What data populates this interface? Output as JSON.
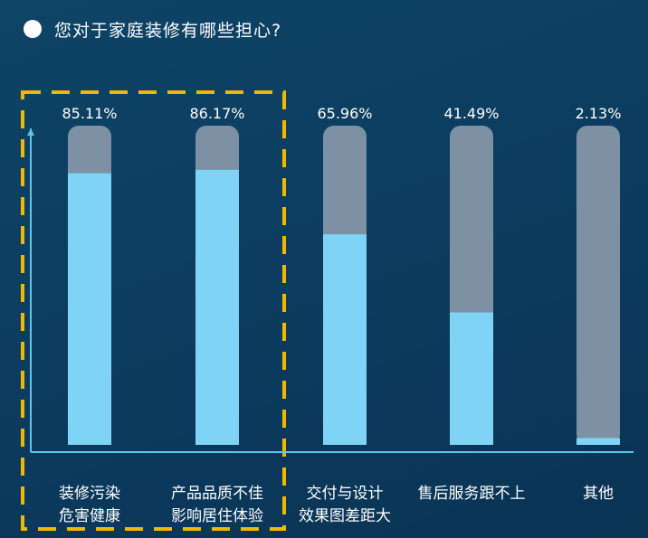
{
  "question": "您对于家庭装修有哪些担心?",
  "colors": {
    "filled": "#7fd4f6",
    "track": "#7d90a4",
    "axis": "#5cc6ee",
    "highlight": "#f2b800",
    "text": "#ffffff"
  },
  "chart_data": {
    "type": "bar",
    "categories": [
      [
        "装修污染",
        "危害健康"
      ],
      [
        "产品品质不佳",
        "影响居住体验"
      ],
      [
        "交付与设计",
        "效果图差距大"
      ],
      [
        "售后服务跟不上"
      ],
      [
        "其他"
      ]
    ],
    "values": [
      85.11,
      86.17,
      65.96,
      41.49,
      2.13
    ],
    "value_labels": [
      "85.11%",
      "86.17%",
      "65.96%",
      "41.49%",
      "2.13%"
    ],
    "ylim": [
      0,
      100
    ],
    "highlighted_categories": [
      0,
      1
    ],
    "grid": false
  }
}
